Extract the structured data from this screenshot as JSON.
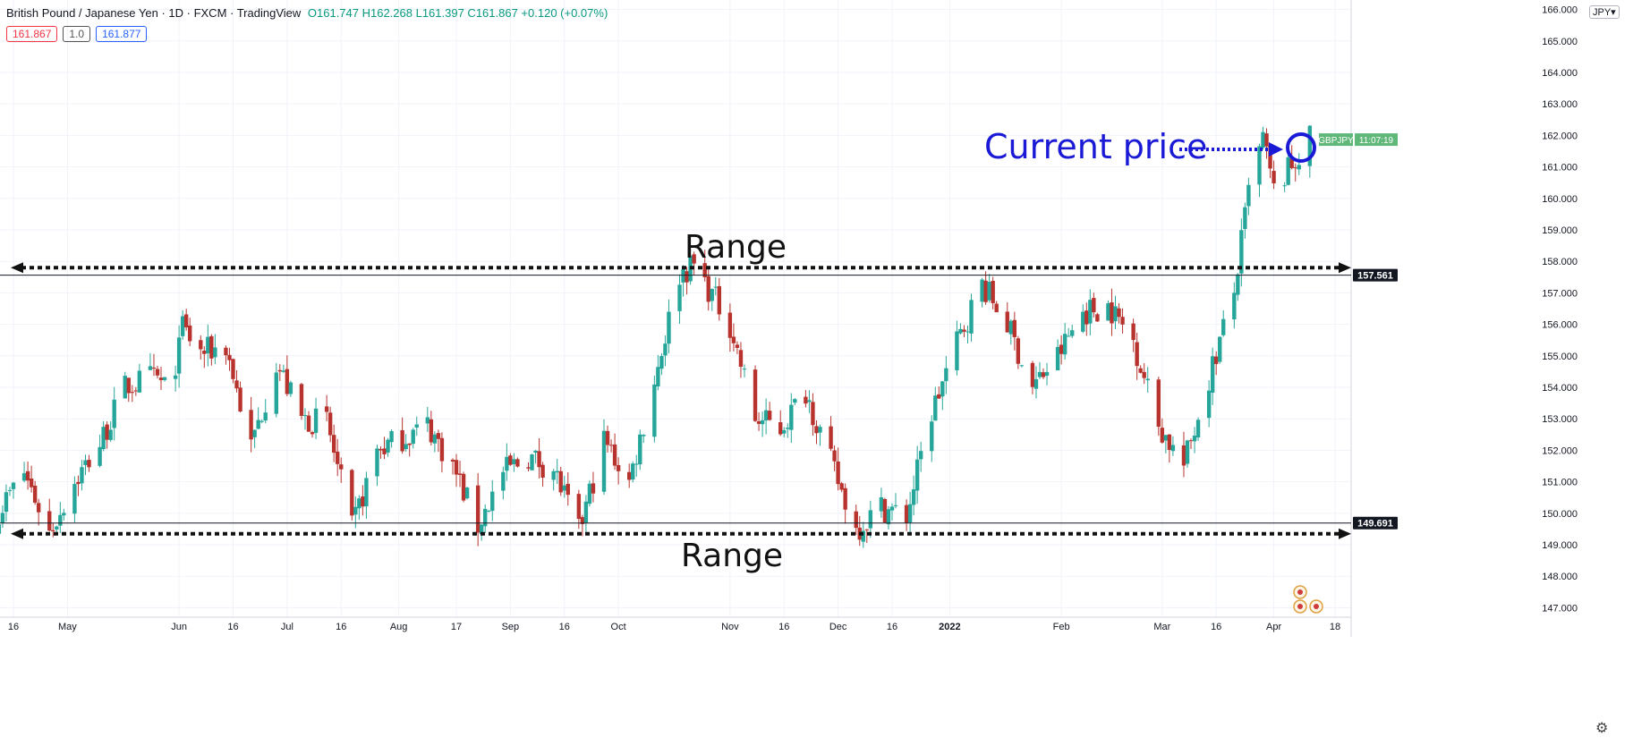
{
  "header": {
    "symbol_title": "British Pound / Japanese Yen · 1D · FXCM · TradingView",
    "ohlc": "O161.747 H162.268 L161.397 C161.867 +0.120 (+0.07%)",
    "sell_price": "161.867",
    "lot": "1.0",
    "buy_price": "161.877",
    "currency_button": "JPY▾"
  },
  "colors": {
    "up": "#26a69a",
    "down": "#b8332e",
    "annotation": "#1a1ad6",
    "current_price_tag": "#5fb77a",
    "grid": "#f0f3fa"
  },
  "annotations": {
    "current_price_label": "Current price",
    "upper_range_label": "Range",
    "lower_range_label": "Range"
  },
  "chart_data": {
    "type": "candlestick",
    "title": "",
    "ylim": [
      146.7,
      166.3
    ],
    "y_ticks": [
      "147.000",
      "148.000",
      "149.000",
      "150.000",
      "151.000",
      "152.000",
      "153.000",
      "154.000",
      "155.000",
      "156.000",
      "157.000",
      "158.000",
      "159.000",
      "160.000",
      "161.000",
      "162.000",
      "163.000",
      "164.000",
      "165.000",
      "166.000"
    ],
    "x_tick_labels": [
      {
        "label": "16",
        "date": "2021-04-16"
      },
      {
        "label": "May",
        "date": "2021-05-01"
      },
      {
        "label": "Jun",
        "date": "2021-06-01"
      },
      {
        "label": "16",
        "date": "2021-06-16"
      },
      {
        "label": "Jul",
        "date": "2021-07-01"
      },
      {
        "label": "16",
        "date": "2021-07-16"
      },
      {
        "label": "Aug",
        "date": "2021-08-01"
      },
      {
        "label": "17",
        "date": "2021-08-17"
      },
      {
        "label": "Sep",
        "date": "2021-09-01"
      },
      {
        "label": "16",
        "date": "2021-09-16"
      },
      {
        "label": "Oct",
        "date": "2021-10-01"
      },
      {
        "label": "Nov",
        "date": "2021-11-01"
      },
      {
        "label": "16",
        "date": "2021-11-16"
      },
      {
        "label": "Dec",
        "date": "2021-12-01"
      },
      {
        "label": "16",
        "date": "2021-12-16"
      },
      {
        "label": "2022",
        "date": "2022-01-01"
      },
      {
        "label": "Feb",
        "date": "2022-02-01"
      },
      {
        "label": "Mar",
        "date": "2022-03-01"
      },
      {
        "label": "16",
        "date": "2022-03-16"
      },
      {
        "label": "Apr",
        "date": "2022-04-01"
      },
      {
        "label": "18",
        "date": "2022-04-18"
      }
    ],
    "horizontal_levels": [
      {
        "value": 157.561,
        "label": "157.561"
      },
      {
        "value": 149.691,
        "label": "149.691"
      }
    ],
    "range_arrows": [
      157.8,
      149.35
    ],
    "current_price": {
      "value": 161.867,
      "symbol_label": "GBPJPY",
      "countdown": "11:07:19"
    },
    "close_path": [
      {
        "date": "2021-04-12",
        "close": 150.1
      },
      {
        "date": "2021-04-19",
        "close": 151.3
      },
      {
        "date": "2021-04-26",
        "close": 149.4
      },
      {
        "date": "2021-05-03",
        "close": 151.0
      },
      {
        "date": "2021-05-10",
        "close": 152.2
      },
      {
        "date": "2021-05-17",
        "close": 154.0
      },
      {
        "date": "2021-05-24",
        "close": 154.3
      },
      {
        "date": "2021-05-31",
        "close": 154.0
      },
      {
        "date": "2021-06-01",
        "close": 156.0
      },
      {
        "date": "2021-06-07",
        "close": 155.1
      },
      {
        "date": "2021-06-14",
        "close": 155.3
      },
      {
        "date": "2021-06-21",
        "close": 152.1
      },
      {
        "date": "2021-06-28",
        "close": 154.8
      },
      {
        "date": "2021-07-05",
        "close": 153.0
      },
      {
        "date": "2021-07-12",
        "close": 152.9
      },
      {
        "date": "2021-07-19",
        "close": 149.5
      },
      {
        "date": "2021-07-26",
        "close": 152.0
      },
      {
        "date": "2021-08-02",
        "close": 152.4
      },
      {
        "date": "2021-08-09",
        "close": 152.8
      },
      {
        "date": "2021-08-16",
        "close": 151.5
      },
      {
        "date": "2021-08-23",
        "close": 149.6
      },
      {
        "date": "2021-08-30",
        "close": 151.3
      },
      {
        "date": "2021-09-06",
        "close": 151.8
      },
      {
        "date": "2021-09-13",
        "close": 151.4
      },
      {
        "date": "2021-09-20",
        "close": 149.4
      },
      {
        "date": "2021-09-27",
        "close": 152.3
      },
      {
        "date": "2021-10-04",
        "close": 151.0
      },
      {
        "date": "2021-10-11",
        "close": 154.2
      },
      {
        "date": "2021-10-18",
        "close": 157.6
      },
      {
        "date": "2021-10-22",
        "close": 157.9
      },
      {
        "date": "2021-11-01",
        "close": 156.0
      },
      {
        "date": "2021-11-08",
        "close": 153.0
      },
      {
        "date": "2021-11-15",
        "close": 152.7
      },
      {
        "date": "2021-11-22",
        "close": 153.9
      },
      {
        "date": "2021-11-29",
        "close": 151.6
      },
      {
        "date": "2021-12-06",
        "close": 149.5
      },
      {
        "date": "2021-12-13",
        "close": 150.2
      },
      {
        "date": "2021-12-20",
        "close": 149.9
      },
      {
        "date": "2021-12-27",
        "close": 153.2
      },
      {
        "date": "2022-01-03",
        "close": 155.4
      },
      {
        "date": "2022-01-10",
        "close": 157.3
      },
      {
        "date": "2022-01-17",
        "close": 156.0
      },
      {
        "date": "2022-01-24",
        "close": 154.0
      },
      {
        "date": "2022-01-31",
        "close": 155.0
      },
      {
        "date": "2022-02-07",
        "close": 156.4
      },
      {
        "date": "2022-02-14",
        "close": 156.6
      },
      {
        "date": "2022-02-21",
        "close": 155.5
      },
      {
        "date": "2022-02-28",
        "close": 152.8
      },
      {
        "date": "2022-03-07",
        "close": 151.5
      },
      {
        "date": "2022-03-14",
        "close": 154.3
      },
      {
        "date": "2022-03-21",
        "close": 157.0
      },
      {
        "date": "2022-03-25",
        "close": 160.2
      },
      {
        "date": "2022-03-29",
        "close": 161.9
      },
      {
        "date": "2022-04-01",
        "close": 160.2
      },
      {
        "date": "2022-04-07",
        "close": 161.2
      },
      {
        "date": "2022-04-11",
        "close": 161.87
      }
    ]
  }
}
